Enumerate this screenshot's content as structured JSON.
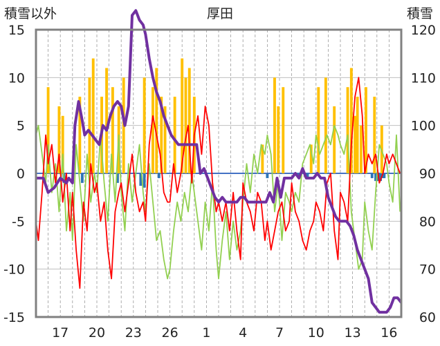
{
  "chart_data": {
    "type": "line",
    "title": "厚田",
    "ylabel_left": "積雪以外",
    "ylabel_right": "積雪",
    "ylim_left": [
      -15,
      15
    ],
    "ylim_right": [
      60,
      120
    ],
    "yticks_left": [
      "15",
      "10",
      "5",
      "0",
      "-5",
      "-10",
      "-15"
    ],
    "yticks_right": [
      "120",
      "110",
      "100",
      "90",
      "80",
      "70",
      "60"
    ],
    "xticks": [
      "17",
      "20",
      "23",
      "26",
      "1",
      "4",
      "7",
      "10",
      "13",
      "16"
    ],
    "x_range_days": [
      15,
      45
    ],
    "xtick_positions_days": [
      17,
      20,
      23,
      26,
      29,
      32,
      35,
      38,
      41,
      44
    ],
    "grid": "vertical dashed lines daily, horizontal at y ticks",
    "colors": {
      "snowfall_bar": "#ffc000",
      "snow_decrease_bar": "#2e75b6",
      "temperature": "#ff0000",
      "wind": "#92d050",
      "snow_depth": "#7030a0",
      "frame": "#808080"
    },
    "series": [
      {
        "name": "",
        "color": "#92d050",
        "axis": "left",
        "x": [
          15.0,
          15.2,
          15.5,
          15.8,
          16.0,
          16.3,
          16.6,
          16.9,
          17.2,
          17.5,
          17.8,
          18.0,
          18.3,
          18.6,
          18.9,
          19.2,
          19.5,
          19.8,
          20.0,
          20.3,
          20.6,
          20.9,
          21.2,
          21.5,
          21.8,
          22.0,
          22.3,
          22.6,
          22.9,
          23.2,
          23.5,
          23.8,
          24.0,
          24.3,
          24.6,
          24.9,
          25.2,
          25.5,
          25.8,
          26.0,
          26.3,
          26.6,
          26.9,
          27.2,
          27.5,
          27.8,
          28.0,
          28.3,
          28.6,
          28.9,
          29.2,
          29.5,
          29.8,
          30.0,
          30.3,
          30.6,
          30.9,
          31.2,
          31.5,
          31.8,
          32.0,
          32.3,
          32.6,
          32.9,
          33.2,
          33.5,
          33.8,
          34.0,
          34.3,
          34.6,
          34.9,
          35.2,
          35.5,
          35.8,
          36.0,
          36.3,
          36.6,
          36.9,
          37.2,
          37.5,
          37.8,
          38.0,
          38.3,
          38.6,
          38.9,
          39.2,
          39.5,
          39.8,
          40.0,
          40.3,
          40.6,
          40.9,
          41.2,
          41.5,
          41.8,
          42.0,
          42.3,
          42.6,
          42.9,
          43.2,
          43.5,
          43.8,
          44.0,
          44.3,
          44.6,
          44.9
        ],
        "y": [
          4,
          5,
          2,
          -1,
          3,
          -2,
          1,
          -4,
          2,
          -6,
          -2,
          -7,
          3,
          -1,
          -5,
          2,
          -3,
          0,
          -2,
          4,
          -1,
          -5,
          2,
          -3,
          4,
          -2,
          -6,
          1,
          -3,
          0,
          3,
          -2,
          -4,
          1,
          -3,
          -7,
          -6,
          -9,
          -11,
          -10,
          -6,
          -3,
          -5,
          -2,
          -4,
          0,
          -2,
          -5,
          -8,
          -3,
          -6,
          -1,
          -8,
          -11,
          -7,
          -4,
          -9,
          -5,
          -8,
          -6,
          -3,
          1,
          -2,
          2,
          0,
          3,
          2,
          4,
          2,
          -4,
          -1,
          -7,
          -2,
          -3,
          -4,
          -2,
          -3,
          1,
          2,
          3,
          1,
          4,
          2,
          3,
          4,
          3,
          5,
          4,
          3,
          2,
          4,
          -4,
          -7,
          -10,
          -9,
          -3,
          -6,
          -8,
          -2,
          3,
          2,
          1,
          -1,
          -3,
          4,
          -4
        ]
      },
      {
        "name": "",
        "color": "#ff0000",
        "axis": "left",
        "x": [
          15.0,
          15.2,
          15.5,
          15.8,
          16.0,
          16.3,
          16.6,
          16.9,
          17.2,
          17.5,
          17.8,
          18.0,
          18.3,
          18.6,
          18.9,
          19.2,
          19.5,
          19.8,
          20.0,
          20.3,
          20.6,
          20.9,
          21.2,
          21.5,
          21.8,
          22.0,
          22.3,
          22.6,
          22.9,
          23.2,
          23.5,
          23.8,
          24.0,
          24.3,
          24.6,
          24.9,
          25.2,
          25.5,
          25.8,
          26.0,
          26.3,
          26.6,
          26.9,
          27.2,
          27.5,
          27.8,
          28.0,
          28.3,
          28.6,
          28.9,
          29.2,
          29.5,
          29.8,
          30.0,
          30.3,
          30.6,
          30.9,
          31.2,
          31.5,
          31.8,
          32.0,
          32.3,
          32.6,
          32.9,
          33.2,
          33.5,
          33.8,
          34.0,
          34.3,
          34.6,
          34.9,
          35.2,
          35.5,
          35.8,
          36.0,
          36.3,
          36.6,
          36.9,
          37.2,
          37.5,
          37.8,
          38.0,
          38.3,
          38.6,
          38.9,
          39.2,
          39.5,
          39.8,
          40.0,
          40.3,
          40.6,
          40.9,
          41.2,
          41.5,
          41.8,
          42.0,
          42.3,
          42.6,
          42.9,
          43.2,
          43.5,
          43.8,
          44.0,
          44.3,
          44.6,
          44.9
        ],
        "y": [
          -5,
          -7,
          -2,
          4,
          1,
          3,
          -1,
          2,
          -3,
          0,
          -6,
          -2,
          -8,
          -12,
          -3,
          -6,
          1,
          -2,
          -1,
          -5,
          -3,
          -8,
          -11,
          -4,
          -2,
          -1,
          -4,
          -1,
          2,
          -2,
          -4,
          -3,
          -5,
          3,
          6,
          4,
          2,
          -2,
          -3,
          -3,
          1,
          -2,
          0,
          3,
          5,
          -1,
          4,
          6,
          2,
          7,
          5,
          -1,
          -4,
          -3,
          -5,
          -3,
          -6,
          -2,
          -6,
          -9,
          -1,
          -3,
          -4,
          -6,
          -2,
          -3,
          -7,
          -5,
          -8,
          -6,
          -4,
          -3,
          -6,
          -5,
          -1,
          -4,
          -5,
          -7,
          -8,
          -6,
          -5,
          -3,
          -4,
          -6,
          -1,
          0,
          -6,
          -9,
          -2,
          -3,
          -5,
          3,
          8,
          10,
          6,
          0,
          2,
          1,
          2,
          -1,
          0,
          2,
          1,
          2,
          1,
          0
        ]
      },
      {
        "name": "",
        "color": "#7030a0",
        "axis": "right",
        "x": [
          15.0,
          15.6,
          16.0,
          16.5,
          17.0,
          17.5,
          17.7,
          18.0,
          18.2,
          18.5,
          18.8,
          19.0,
          19.3,
          19.6,
          19.9,
          20.2,
          20.5,
          20.8,
          21.1,
          21.4,
          21.7,
          22.0,
          22.3,
          22.6,
          22.9,
          23.2,
          23.5,
          23.8,
          24.0,
          24.3,
          24.6,
          24.9,
          25.2,
          25.5,
          25.8,
          26.1,
          26.4,
          26.7,
          27.0,
          27.3,
          27.6,
          27.9,
          28.2,
          28.5,
          28.8,
          29.1,
          29.4,
          29.7,
          30.0,
          30.3,
          30.6,
          30.9,
          31.2,
          31.5,
          31.8,
          32.1,
          32.4,
          32.7,
          33.0,
          33.3,
          33.6,
          33.9,
          34.2,
          34.5,
          34.8,
          35.1,
          35.4,
          35.7,
          36.0,
          36.3,
          36.6,
          36.9,
          37.2,
          37.5,
          37.8,
          38.1,
          38.4,
          38.7,
          39.0,
          39.3,
          39.6,
          39.9,
          40.2,
          40.5,
          40.8,
          41.1,
          41.4,
          41.7,
          42.0,
          42.3,
          42.6,
          42.9,
          43.2,
          43.5,
          43.8,
          44.1,
          44.4,
          44.7,
          45.0
        ],
        "y": [
          89,
          89,
          86,
          87,
          89,
          88,
          89,
          88,
          100,
          105,
          101,
          98,
          99,
          98,
          97,
          96,
          100,
          99,
          102,
          104,
          105,
          104,
          100,
          104,
          123,
          124,
          122,
          121,
          119,
          114,
          110,
          107,
          105,
          102,
          100,
          98,
          97,
          96,
          96,
          96,
          96,
          96,
          96,
          90,
          91,
          89,
          87,
          85,
          84,
          85,
          84,
          84,
          84,
          84,
          85,
          85,
          84,
          84,
          84,
          84,
          84,
          84,
          86,
          84,
          89,
          85,
          89,
          89,
          89,
          90,
          89,
          91,
          89,
          89,
          89,
          90,
          89,
          89,
          85,
          83,
          81,
          80,
          80,
          80,
          79,
          77,
          74,
          72,
          70,
          68,
          63,
          62,
          61,
          61,
          61,
          62,
          64,
          64,
          63
        ]
      }
    ],
    "bars": [
      {
        "name": "",
        "color": "#ffc000",
        "axis": "left",
        "x": [
          16.0,
          16.9,
          17.2,
          18.6,
          19.4,
          19.7,
          20.4,
          20.8,
          21.3,
          21.8,
          22.2,
          23.9,
          24.6,
          24.9,
          25.3,
          25.6,
          26.4,
          27.0,
          27.3,
          27.6,
          28.0,
          33.6,
          34.6,
          34.9,
          35.3,
          37.6,
          38.2,
          38.8,
          39.5,
          40.6,
          40.9,
          41.2,
          41.4,
          41.7,
          42.1,
          42.8,
          43.4
        ],
        "values": [
          9,
          7,
          6,
          8,
          10,
          12,
          8,
          11,
          9,
          7,
          10,
          10,
          9,
          11,
          8,
          7,
          8,
          12,
          10,
          11,
          8,
          3,
          10,
          7,
          9,
          3,
          9,
          10,
          7,
          9,
          11,
          6,
          8,
          5,
          9,
          8,
          5
        ]
      },
      {
        "name": "",
        "color": "#2e75b6",
        "axis": "left",
        "x": [
          17.3,
          18.8,
          21.7,
          23.6,
          23.9,
          25.1,
          34.0,
          36.6,
          37.3,
          42.6,
          42.9,
          43.0,
          43.1,
          43.3,
          43.5,
          43.6
        ],
        "values": [
          -1,
          -1,
          -1,
          -1.3,
          -1.5,
          -0.5,
          -0.5,
          -0.5,
          -0.5,
          -0.5,
          -0.8,
          -0.8,
          -0.8,
          -0.8,
          -0.5,
          -0.5
        ]
      }
    ]
  }
}
